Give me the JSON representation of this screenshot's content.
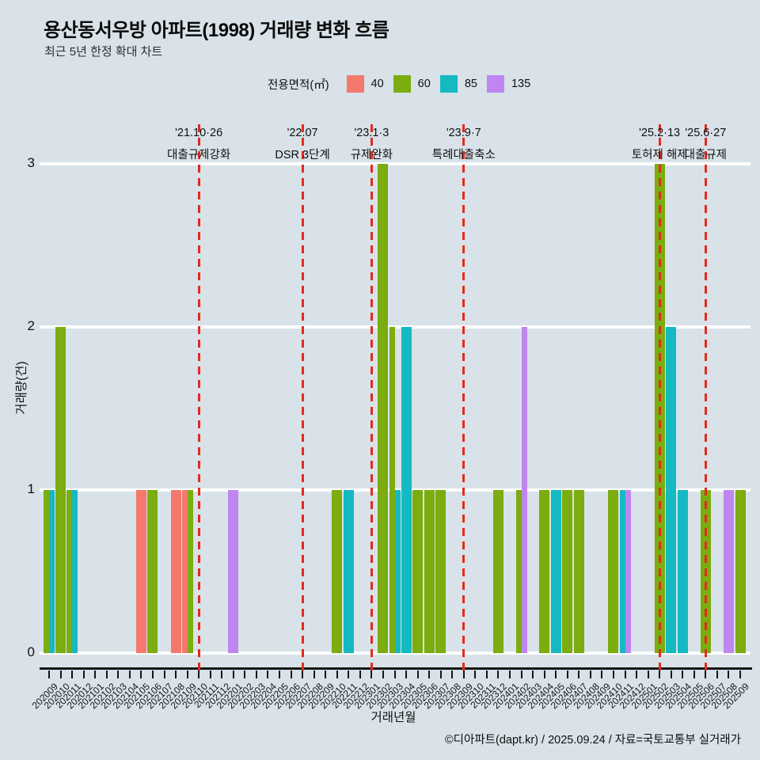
{
  "header": {
    "title": "용산동서우방 아파트(1998) 거래량 변화 흐름",
    "subtitle": "최근 5년 한정 확대 차트"
  },
  "footer": {
    "credit": "©디아파트(dapt.kr) / 2025.09.24 / 자료=국토교통부 실거래가"
  },
  "chart_data": {
    "type": "bar",
    "title": "용산동서우방 아파트(1998) 거래량 변화 흐름",
    "subtitle": "최근 5년 한정 확대 차트",
    "xlabel": "거래년월",
    "ylabel": "거래량(건)",
    "ylim": [
      0,
      3
    ],
    "yticks": [
      "0",
      "1",
      "2",
      "3"
    ],
    "grid": "horizontal-white",
    "background": "#D8E2E8",
    "legend": {
      "title": "전용면적(㎡)",
      "position": "top-center",
      "sizes": [
        {
          "label": "40",
          "color": "#F4786C"
        },
        {
          "label": "60",
          "color": "#7BAC10"
        },
        {
          "label": "85",
          "color": "#15B9C2"
        },
        {
          "label": "135",
          "color": "#BF86F1"
        }
      ]
    },
    "x": [
      "202009",
      "202010",
      "202011",
      "202012",
      "202101",
      "202102",
      "202103",
      "202104",
      "202105",
      "202106",
      "202107",
      "202108",
      "202109",
      "202110",
      "202111",
      "202112",
      "202201",
      "202202",
      "202203",
      "202204",
      "202205",
      "202206",
      "202207",
      "202208",
      "202209",
      "202210",
      "202211",
      "202212",
      "202301",
      "202302",
      "202303",
      "202304",
      "202305",
      "202306",
      "202307",
      "202308",
      "202309",
      "202310",
      "202311",
      "202312",
      "202401",
      "202402",
      "202403",
      "202404",
      "202405",
      "202406",
      "202407",
      "202408",
      "202409",
      "202410",
      "202411",
      "202412",
      "202501",
      "202502",
      "202503",
      "202504",
      "202505",
      "202506",
      "202507",
      "202508",
      "202509"
    ],
    "bars": [
      {
        "month": "202009",
        "size": "60",
        "count": 1
      },
      {
        "month": "202009",
        "size": "85",
        "count": 1
      },
      {
        "month": "202010",
        "size": "60",
        "count": 2
      },
      {
        "month": "202011",
        "size": "60",
        "count": 1
      },
      {
        "month": "202011",
        "size": "85",
        "count": 1
      },
      {
        "month": "202105",
        "size": "40",
        "count": 1
      },
      {
        "month": "202106",
        "size": "60",
        "count": 1
      },
      {
        "month": "202108",
        "size": "40",
        "count": 1
      },
      {
        "month": "202109",
        "size": "40",
        "count": 1
      },
      {
        "month": "202109",
        "size": "60",
        "count": 1
      },
      {
        "month": "202201",
        "size": "135",
        "count": 1
      },
      {
        "month": "202210",
        "size": "60",
        "count": 1
      },
      {
        "month": "202211",
        "size": "85",
        "count": 1
      },
      {
        "month": "202302",
        "size": "60",
        "count": 3
      },
      {
        "month": "202303",
        "size": "60",
        "count": 2
      },
      {
        "month": "202303",
        "size": "85",
        "count": 1
      },
      {
        "month": "202304",
        "size": "85",
        "count": 2
      },
      {
        "month": "202305",
        "size": "60",
        "count": 1
      },
      {
        "month": "202306",
        "size": "60",
        "count": 1
      },
      {
        "month": "202307",
        "size": "60",
        "count": 1
      },
      {
        "month": "202312",
        "size": "60",
        "count": 1
      },
      {
        "month": "202402",
        "size": "60",
        "count": 1
      },
      {
        "month": "202402",
        "size": "135",
        "count": 2
      },
      {
        "month": "202404",
        "size": "60",
        "count": 1
      },
      {
        "month": "202405",
        "size": "85",
        "count": 1
      },
      {
        "month": "202406",
        "size": "60",
        "count": 1
      },
      {
        "month": "202407",
        "size": "60",
        "count": 1
      },
      {
        "month": "202410",
        "size": "60",
        "count": 1
      },
      {
        "month": "202411",
        "size": "85",
        "count": 1
      },
      {
        "month": "202411",
        "size": "135",
        "count": 1
      },
      {
        "month": "202502",
        "size": "60",
        "count": 3
      },
      {
        "month": "202503",
        "size": "85",
        "count": 2
      },
      {
        "month": "202504",
        "size": "85",
        "count": 1
      },
      {
        "month": "202506",
        "size": "60",
        "count": 1
      },
      {
        "month": "202508",
        "size": "135",
        "count": 1
      },
      {
        "month": "202509",
        "size": "60",
        "count": 1
      }
    ],
    "annotations": [
      {
        "date": "'21.10·26",
        "label": "대출규제강화",
        "month": "202110",
        "color": "#E42A1D"
      },
      {
        "date": "'22.07",
        "label": "DSR 3단계",
        "month": "202207",
        "color": "#E42A1D"
      },
      {
        "date": "'23.1·3",
        "label": "규제완화",
        "month": "202301",
        "color": "#E42A1D"
      },
      {
        "date": "'23.9·7",
        "label": "특례대출축소",
        "month": "202309",
        "color": "#E42A1D"
      },
      {
        "date": "'25.2·13",
        "label": "토허제 해제",
        "month": "202502",
        "color": "#E42A1D"
      },
      {
        "date": "'25.6·27",
        "label": "대출규제",
        "month": "202506",
        "color": "#E42A1D"
      }
    ]
  }
}
